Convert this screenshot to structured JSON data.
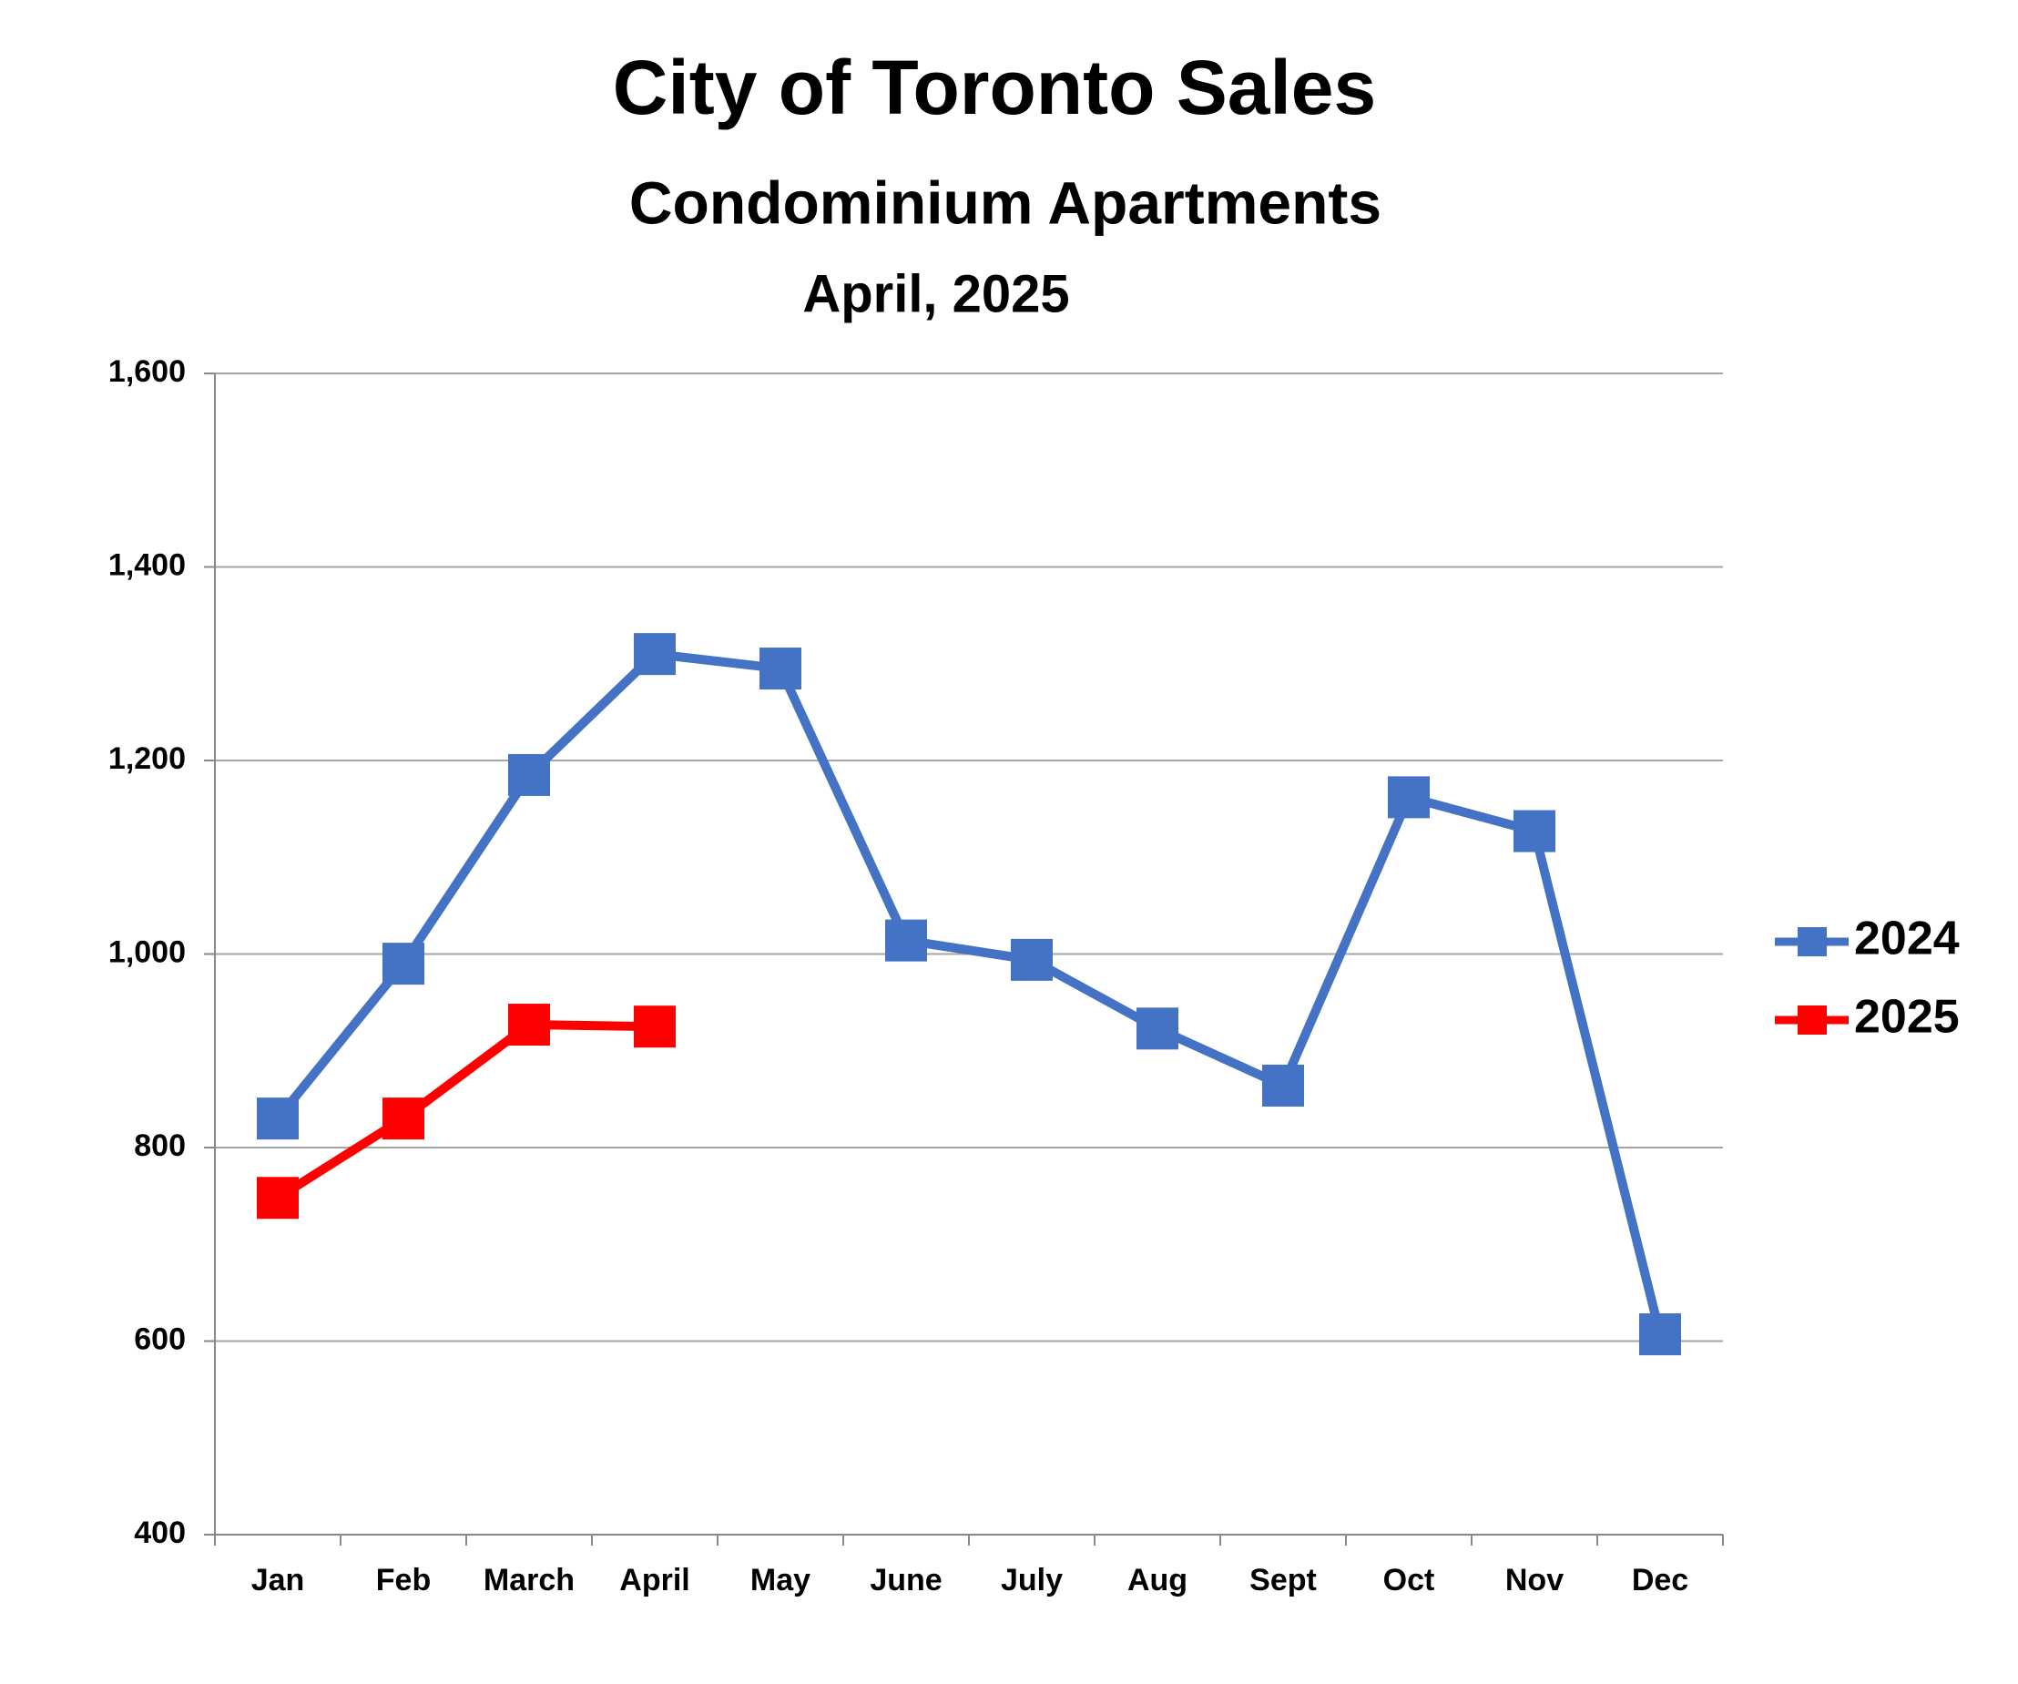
{
  "chart_data": {
    "type": "line",
    "title": "City of Toronto Sales",
    "subtitle": "Condominium Apartments",
    "date_label": "April, 2025",
    "categories": [
      "Jan",
      "Feb",
      "March",
      "April",
      "May",
      "June",
      "July",
      "Aug",
      "Sept",
      "Oct",
      "Nov",
      "Dec"
    ],
    "series": [
      {
        "name": "2024",
        "color": "#4472c4",
        "values": [
          830,
          990,
          1185,
          1310,
          1295,
          1014,
          994,
          923,
          864,
          1162,
          1127,
          607
        ]
      },
      {
        "name": "2025",
        "color": "#ff0000",
        "values": [
          748,
          830,
          927,
          925,
          null,
          null,
          null,
          null,
          null,
          null,
          null,
          null
        ]
      }
    ],
    "ylim": [
      400,
      1600
    ],
    "yticks": [
      400,
      600,
      800,
      {
        "value": 1000,
        "label": "1,000"
      },
      {
        "value": 1200,
        "label": "1,200"
      },
      {
        "value": 1400,
        "label": "1,400"
      },
      {
        "value": 1600,
        "label": "1,600"
      }
    ],
    "grid": true,
    "legend": "right"
  }
}
